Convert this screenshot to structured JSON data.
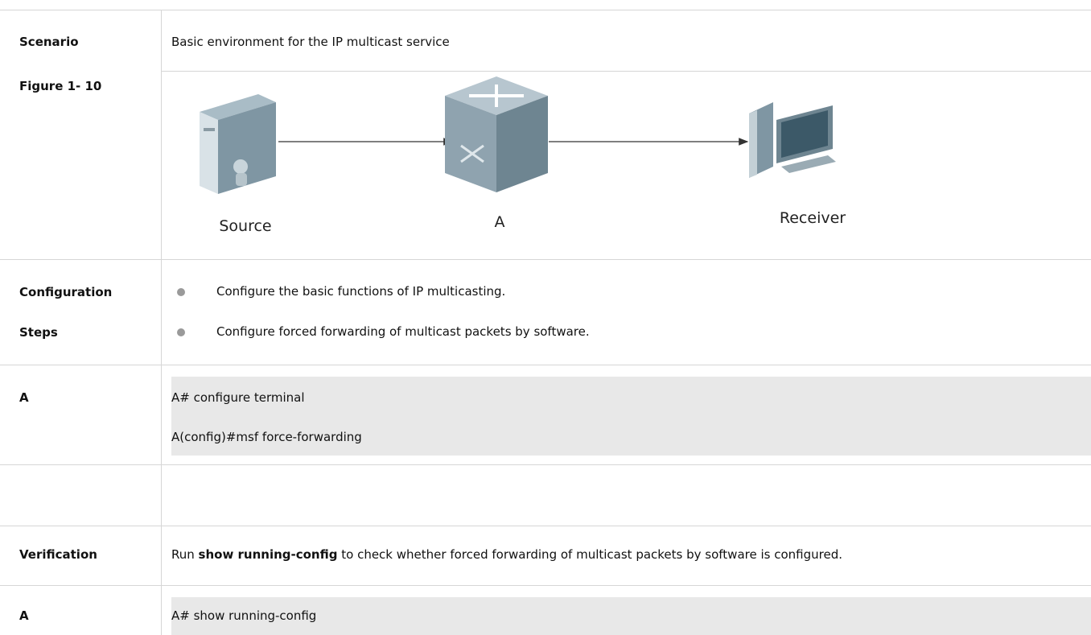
{
  "rows": [
    {
      "label": [
        "Scenario",
        "Figure 1- 10"
      ],
      "content": "Basic environment for the IP multicast service"
    },
    {
      "figure": {
        "nodes": [
          "Source",
          "A",
          "Receiver"
        ]
      }
    },
    {
      "label": [
        "Configuration",
        "Steps"
      ],
      "bullets": [
        "Configure the basic functions of IP multicasting.",
        "Configure forced forwarding of multicast packets by software."
      ]
    },
    {
      "label": "A",
      "code": [
        "A# configure terminal",
        "A(config)#msf force-forwarding"
      ]
    },
    {
      "label": "Verification",
      "content": [
        "Run ",
        "show running-config",
        " to check whether forced forwarding of multicast packets by software is configured."
      ]
    },
    {
      "label": "A",
      "code": [
        "A# show running-config"
      ]
    }
  ]
}
